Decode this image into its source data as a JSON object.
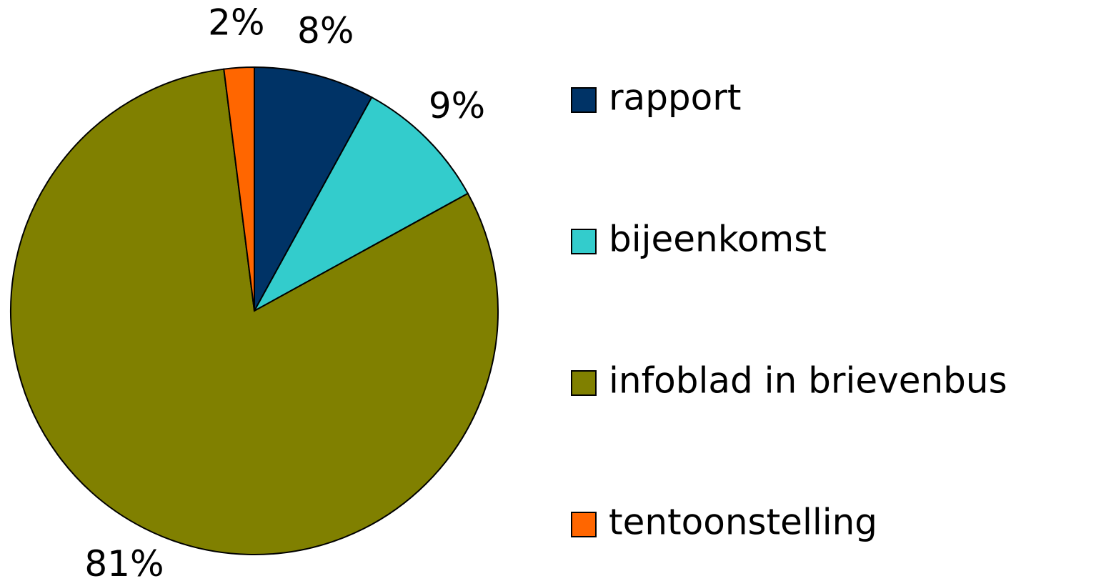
{
  "chart_data": {
    "type": "pie",
    "categories": [
      "rapport",
      "bijeenkomst",
      "infoblad in brievenbus",
      "tentoonstelling"
    ],
    "values": [
      8,
      9,
      81,
      2
    ],
    "value_labels": [
      "8%",
      "9%",
      "81%",
      "2%"
    ],
    "colors": [
      "#003366",
      "#33cccc",
      "#808000",
      "#ff6600"
    ],
    "legend": "right"
  }
}
